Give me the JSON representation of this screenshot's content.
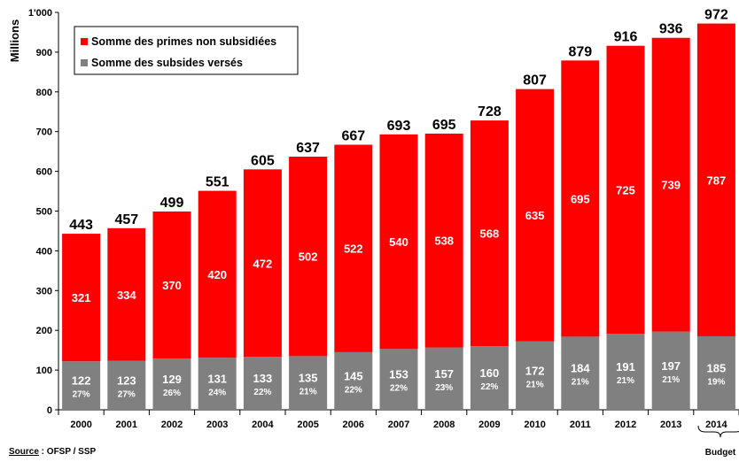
{
  "chart_data": {
    "type": "bar",
    "stacked": true,
    "ylabel": "Millions",
    "ylim": [
      0,
      1000
    ],
    "yticks": [
      "0",
      "100",
      "200",
      "300",
      "400",
      "500",
      "600",
      "700",
      "800",
      "900",
      "1'000"
    ],
    "categories": [
      "2000",
      "2001",
      "2002",
      "2003",
      "2004",
      "2005",
      "2006",
      "2007",
      "2008",
      "2009",
      "2010",
      "2011",
      "2012",
      "2013",
      "2014"
    ],
    "series": [
      {
        "name": "Somme des subsides versés",
        "color": "#808080",
        "values": [
          122,
          123,
          129,
          131,
          133,
          135,
          145,
          153,
          157,
          160,
          172,
          184,
          191,
          197,
          185
        ],
        "percent_labels": [
          "27%",
          "27%",
          "26%",
          "24%",
          "22%",
          "21%",
          "22%",
          "22%",
          "23%",
          "22%",
          "21%",
          "21%",
          "21%",
          "21%",
          "19%"
        ]
      },
      {
        "name": "Somme des primes non subsidiées",
        "color": "#ff0000",
        "values": [
          321,
          334,
          370,
          420,
          472,
          502,
          522,
          540,
          538,
          568,
          635,
          695,
          725,
          739,
          787
        ]
      }
    ],
    "totals": [
      443,
      457,
      499,
      551,
      605,
      637,
      667,
      693,
      695,
      728,
      807,
      879,
      916,
      936,
      972
    ],
    "legend_position": "top-left",
    "grid": false,
    "annotations": {
      "bracket_label": "Budget",
      "bracket_category": "2014"
    }
  },
  "source": {
    "prefix": "Source",
    "text": " : OFSP / SSP"
  }
}
